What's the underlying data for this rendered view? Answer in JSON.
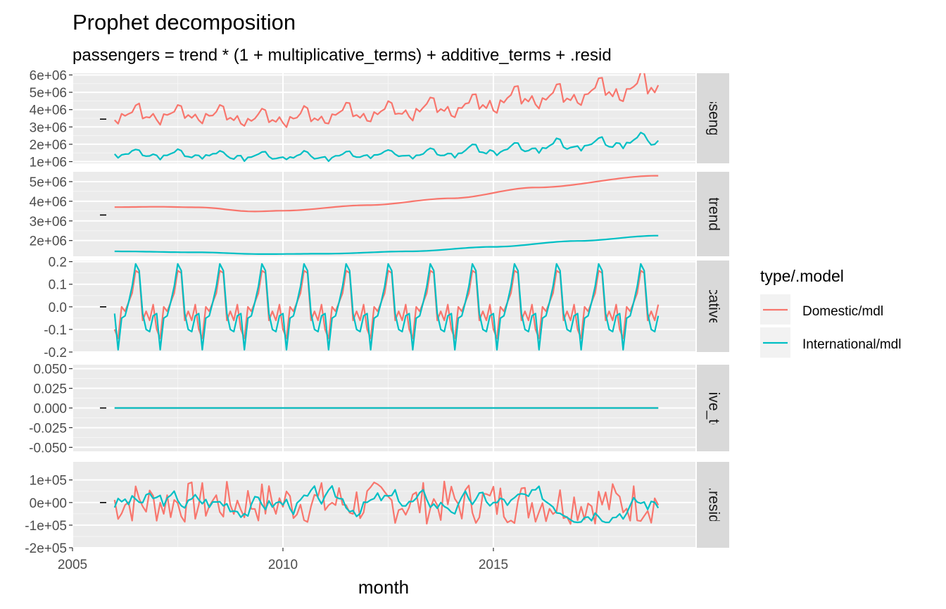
{
  "colors": {
    "domestic": "#F8766D",
    "international": "#00BFC4",
    "panel_bg": "#EBEBEB",
    "strip_bg": "#D9D9D9",
    "grid_major": "#FFFFFF"
  },
  "chart_data": {
    "type": "line",
    "title": "Prophet decomposition",
    "subtitle": "passengers = trend * (1 + multiplicative_terms) + additive_terms + .resid",
    "xlabel": "month",
    "x_ticks": [
      "2005",
      "2010",
      "2015"
    ],
    "x_tick_values": [
      2005,
      2010,
      2015
    ],
    "xlim": [
      2005,
      2019.8
    ],
    "x_start": 2006.0,
    "x_end": 2018.917,
    "legend": {
      "title": "type/.model",
      "position": "right",
      "entries": [
        "Domestic/mdl",
        "International/mdl"
      ]
    },
    "facets": [
      {
        "strip": "passengers",
        "ylim": [
          900000,
          6100000
        ],
        "y_ticks": [
          1000000,
          2000000,
          3000000,
          4000000,
          5000000,
          6000000
        ],
        "y_tick_labels": [
          "1e+06",
          "2e+06",
          "3e+06",
          "4e+06",
          "5e+06",
          "6e+06"
        ],
        "marker_value": 3450000,
        "series": [
          {
            "name": "Domestic/mdl",
            "kind": "passengers",
            "trend_start": 3700000,
            "trend_end": 5300000,
            "seasonal_amp": 0.15,
            "noise": 90000
          },
          {
            "name": "International/mdl",
            "kind": "passengers",
            "trend_start": 1450000,
            "trend_end": 2250000,
            "seasonal_amp": 0.19,
            "noise": 60000
          }
        ]
      },
      {
        "strip": "trend",
        "ylim": [
          1200000,
          5500000
        ],
        "y_ticks": [
          2000000,
          3000000,
          4000000,
          5000000
        ],
        "y_tick_labels": [
          "2e+06",
          "3e+06",
          "4e+06",
          "5e+06"
        ],
        "marker_value": 3300000,
        "series": [
          {
            "name": "Domestic/mdl",
            "kind": "trend",
            "x": [
              2006.0,
              2007.0,
              2008.0,
              2009.3,
              2010.0,
              2012.0,
              2014.0,
              2016.0,
              2018.9
            ],
            "values": [
              3700000,
              3720000,
              3690000,
              3480000,
              3520000,
              3800000,
              4150000,
              4700000,
              5300000
            ]
          },
          {
            "name": "International/mdl",
            "kind": "trend",
            "x": [
              2006.0,
              2008.0,
              2009.5,
              2011.0,
              2013.0,
              2015.0,
              2017.0,
              2018.9
            ],
            "values": [
              1450000,
              1400000,
              1310000,
              1330000,
              1450000,
              1680000,
              1980000,
              2250000
            ]
          }
        ]
      },
      {
        "strip": "multiplicative_terms",
        "ylim": [
          -0.2,
          0.205
        ],
        "y_ticks": [
          -0.2,
          -0.1,
          0.0,
          0.1,
          0.2
        ],
        "y_tick_labels": [
          "-0.2",
          "-0.1",
          "0.0",
          "0.1",
          "0.2"
        ],
        "marker_value": 0.0,
        "series": [
          {
            "name": "Domestic/mdl",
            "kind": "seasonal",
            "monthly": [
              -0.1,
              -0.14,
              0.0,
              -0.02,
              0.02,
              0.06,
              0.16,
              0.15,
              -0.06,
              -0.02,
              -0.06,
              0.01
            ]
          },
          {
            "name": "International/mdl",
            "kind": "seasonal",
            "monthly": [
              -0.03,
              -0.19,
              -0.05,
              -0.04,
              0.02,
              0.09,
              0.19,
              0.16,
              -0.03,
              -0.1,
              -0.11,
              -0.04
            ]
          }
        ]
      },
      {
        "strip": "additive_terms",
        "ylim": [
          -0.055,
          0.055
        ],
        "y_ticks": [
          -0.05,
          -0.025,
          0.0,
          0.025,
          0.05
        ],
        "y_tick_labels": [
          "-0.050",
          "-0.025",
          "0.000",
          "0.025",
          "0.050"
        ],
        "marker_value": 0.0,
        "series": [
          {
            "name": "Domestic/mdl",
            "kind": "zero"
          },
          {
            "name": "International/mdl",
            "kind": "zero"
          }
        ]
      },
      {
        "strip": ".resid",
        "ylim": [
          -200000,
          180000
        ],
        "y_ticks": [
          -200000,
          -100000,
          0,
          100000
        ],
        "y_tick_labels": [
          "-2e+05",
          "-1e+05",
          "0e+00",
          "1e+05"
        ],
        "marker_value": 0,
        "series": [
          {
            "name": "Domestic/mdl",
            "kind": "resid",
            "amp": 95000,
            "seed": 7
          },
          {
            "name": "International/mdl",
            "kind": "resid_smooth",
            "amp": 55000,
            "seed": 3
          }
        ]
      }
    ]
  }
}
